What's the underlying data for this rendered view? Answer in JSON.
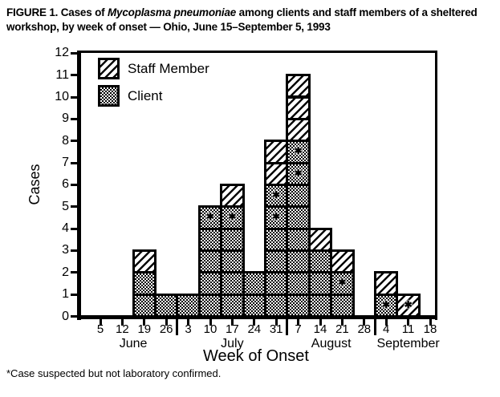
{
  "figure": {
    "title_prefix": "FIGURE 1. Cases of ",
    "title_italic": "Mycoplasma pneumoniae",
    "title_suffix": " among clients and staff members of a sheltered workshop, by week of onset — Ohio, June 15–September 5, 1993",
    "footnote": "*Case suspected but not laboratory confirmed."
  },
  "chart_data": {
    "type": "bar",
    "stacked": true,
    "unit_cells": true,
    "title": "Cases of Mycoplasma pneumoniae among clients and staff members of a sheltered workshop, by week of onset — Ohio, June 15–September 5, 1993",
    "xlabel": "Week of Onset",
    "ylabel": "Cases",
    "ylim": [
      0,
      12
    ],
    "y_tick_step": 1,
    "grid": false,
    "legend_position": "top-left-inside",
    "legend": [
      {
        "label": "Staff Member",
        "pattern": "diagonal-hatch"
      },
      {
        "label": "Client",
        "pattern": "cross-hatch"
      }
    ],
    "months": [
      {
        "label": "June",
        "weeks": [
          "5",
          "12",
          "19",
          "26"
        ]
      },
      {
        "label": "July",
        "weeks": [
          "3",
          "10",
          "17",
          "24",
          "31"
        ]
      },
      {
        "label": "August",
        "weeks": [
          "7",
          "14",
          "21",
          "28"
        ]
      },
      {
        "label": "September",
        "weeks": [
          "4",
          "11",
          "18"
        ]
      }
    ],
    "series": [
      {
        "name": "Client",
        "pattern": "cross-hatch",
        "values": [
          0,
          0,
          2,
          1,
          1,
          5,
          5,
          2,
          6,
          8,
          3,
          2,
          0,
          1,
          0,
          0
        ]
      },
      {
        "name": "Staff Member",
        "pattern": "diagonal-hatch",
        "values": [
          0,
          0,
          1,
          0,
          0,
          0,
          1,
          0,
          2,
          3,
          1,
          1,
          0,
          1,
          1,
          0
        ]
      }
    ],
    "suspected_cases": [
      {
        "week": "July 10",
        "week_index": 5,
        "level": 5,
        "series": "Client"
      },
      {
        "week": "July 17",
        "week_index": 6,
        "level": 5,
        "series": "Client"
      },
      {
        "week": "July 31",
        "week_index": 8,
        "level": 5,
        "series": "Client"
      },
      {
        "week": "July 31",
        "week_index": 8,
        "level": 6,
        "series": "Client"
      },
      {
        "week": "August 7",
        "week_index": 9,
        "level": 7,
        "series": "Client"
      },
      {
        "week": "August 7",
        "week_index": 9,
        "level": 8,
        "series": "Client"
      },
      {
        "week": "August 21",
        "week_index": 11,
        "level": 2,
        "series": "Client"
      },
      {
        "week": "September 4",
        "week_index": 13,
        "level": 1,
        "series": "Client"
      },
      {
        "week": "September 11",
        "week_index": 14,
        "level": 1,
        "series": "Staff Member"
      }
    ],
    "suspected_marker": "✱"
  }
}
